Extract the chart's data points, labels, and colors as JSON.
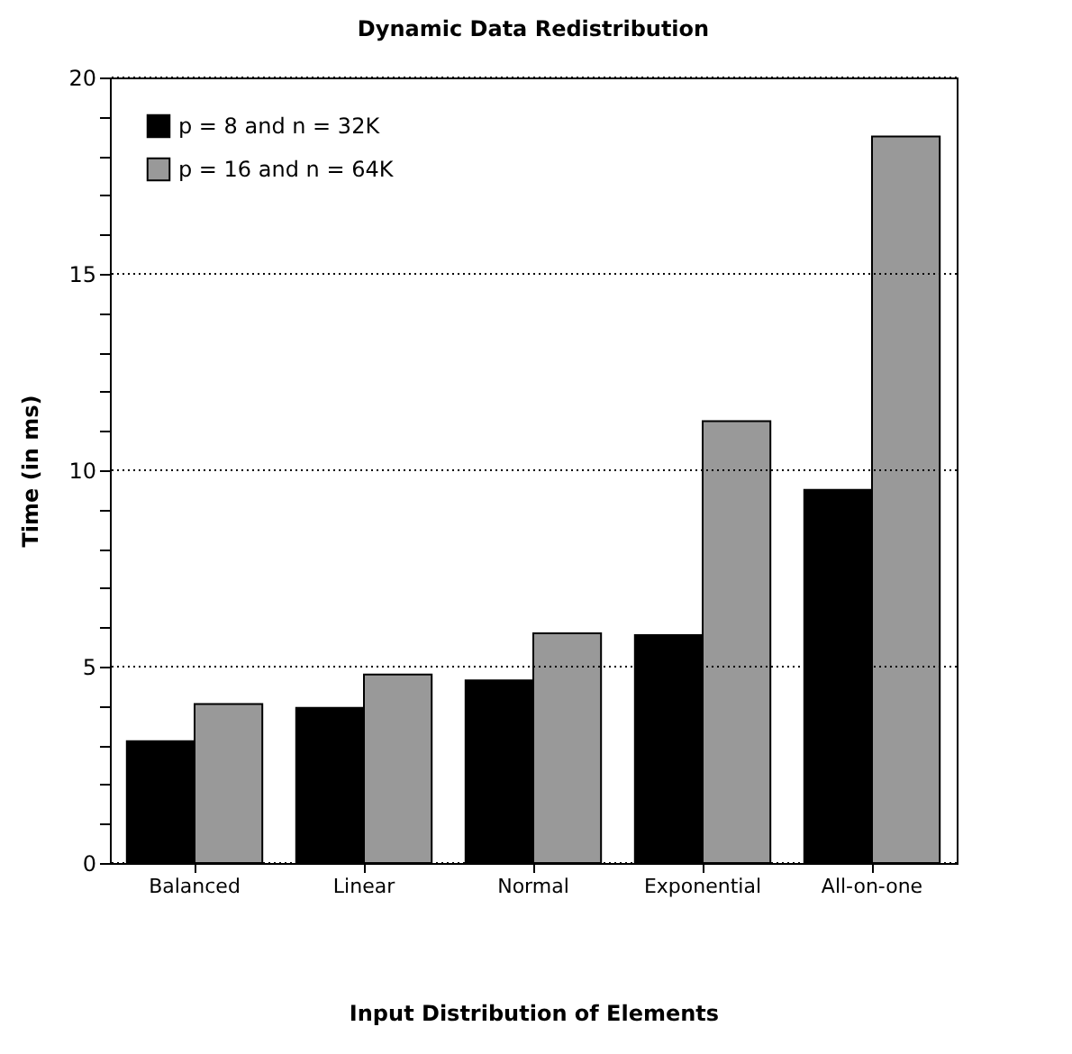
{
  "chart_data": {
    "type": "bar",
    "title": "Dynamic Data Redistribution",
    "xlabel": "Input Distribution of Elements",
    "ylabel": "Time (in ms)",
    "categories": [
      "Balanced",
      "Linear",
      "Normal",
      "Exponential",
      "All-on-one"
    ],
    "series": [
      {
        "name": "p =   8  and  n = 32K",
        "color": "#000000",
        "values": [
          3.1,
          3.95,
          4.65,
          5.8,
          9.5
        ]
      },
      {
        "name": "p = 16  and  n = 64K",
        "color": "#999999",
        "values": [
          4.05,
          4.8,
          5.85,
          11.25,
          18.5
        ]
      }
    ],
    "ylim": [
      0,
      20
    ],
    "yticks": [
      0,
      {
        "value": 1,
        "label": null
      },
      {
        "value": 2,
        "label": null
      },
      {
        "value": 3,
        "label": null
      },
      {
        "value": 4,
        "label": null
      },
      5,
      {
        "value": 6,
        "label": null
      },
      {
        "value": 7,
        "label": null
      },
      {
        "value": 8,
        "label": null
      },
      {
        "value": 9,
        "label": null
      },
      10,
      {
        "value": 11,
        "label": null
      },
      {
        "value": 12,
        "label": null
      },
      {
        "value": 13,
        "label": null
      },
      {
        "value": 14,
        "label": null
      },
      15,
      {
        "value": 16,
        "label": null
      },
      {
        "value": 17,
        "label": null
      },
      {
        "value": 18,
        "label": null
      },
      {
        "value": 19,
        "label": null
      },
      20
    ],
    "grid": "y",
    "legend": "top left"
  }
}
